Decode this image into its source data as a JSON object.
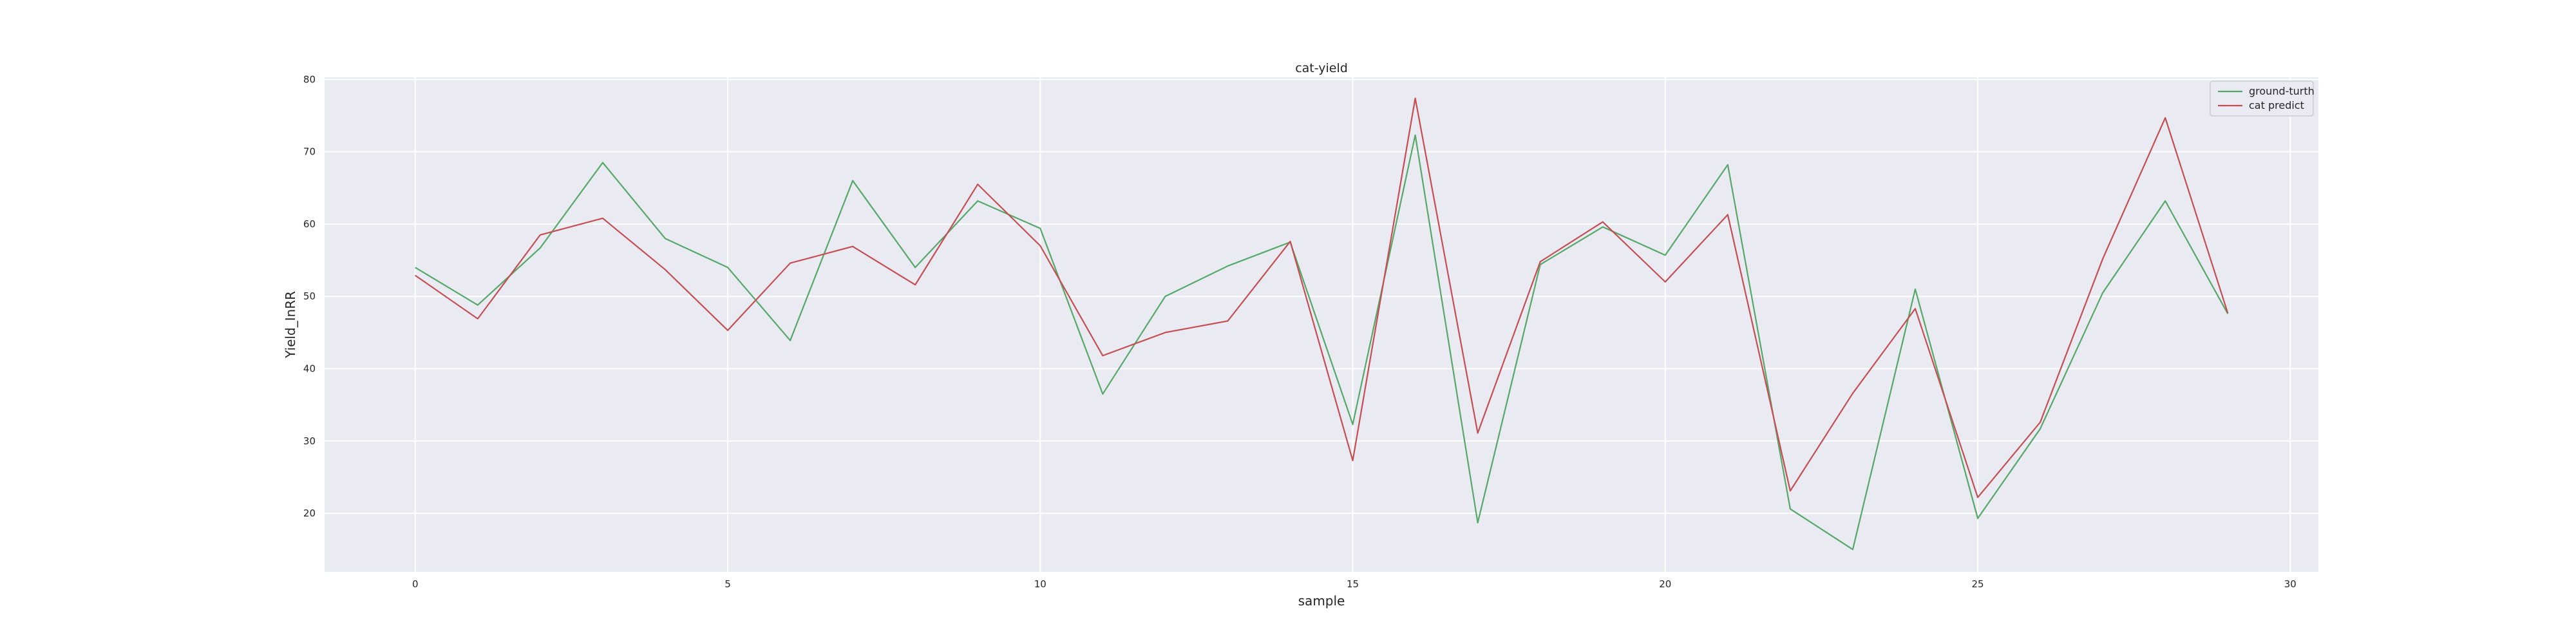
{
  "chart_data": {
    "type": "line",
    "title": "cat-yield",
    "xlabel": "sample",
    "ylabel": "Yield_InRR",
    "xlim": [
      -1.45,
      30.45
    ],
    "ylim": [
      11.9,
      80.3
    ],
    "xticks": [
      0,
      5,
      10,
      15,
      20,
      25,
      30
    ],
    "yticks": [
      20,
      30,
      40,
      50,
      60,
      70,
      80
    ],
    "grid": true,
    "legend_position": "top-right",
    "x": [
      0,
      1,
      2,
      3,
      4,
      5,
      6,
      7,
      8,
      9,
      10,
      11,
      12,
      13,
      14,
      15,
      16,
      17,
      18,
      19,
      20,
      21,
      22,
      23,
      24,
      25,
      26,
      27,
      28,
      29
    ],
    "series": [
      {
        "name": "ground-turth",
        "color": "#55a868",
        "values": [
          54,
          48.8,
          56.7,
          68.5,
          58,
          54,
          43.9,
          66,
          54,
          63.2,
          59.4,
          36.5,
          50,
          54.2,
          57.5,
          32.3,
          72.3,
          18.7,
          54.4,
          59.6,
          55.7,
          68.2,
          20.6,
          15,
          51,
          19.3,
          31.7,
          50.5,
          63.2,
          47.6
        ]
      },
      {
        "name": "cat predict",
        "color": "#c44e52",
        "values": [
          52.9,
          46.9,
          58.5,
          60.8,
          53.7,
          45.3,
          54.6,
          56.9,
          51.6,
          65.5,
          57,
          41.8,
          45,
          46.6,
          57.6,
          27.3,
          77.4,
          31.1,
          54.8,
          60.3,
          52,
          61.3,
          23.1,
          36.6,
          48.3,
          22.2,
          32.6,
          55.2,
          74.7,
          47.7
        ]
      }
    ]
  }
}
